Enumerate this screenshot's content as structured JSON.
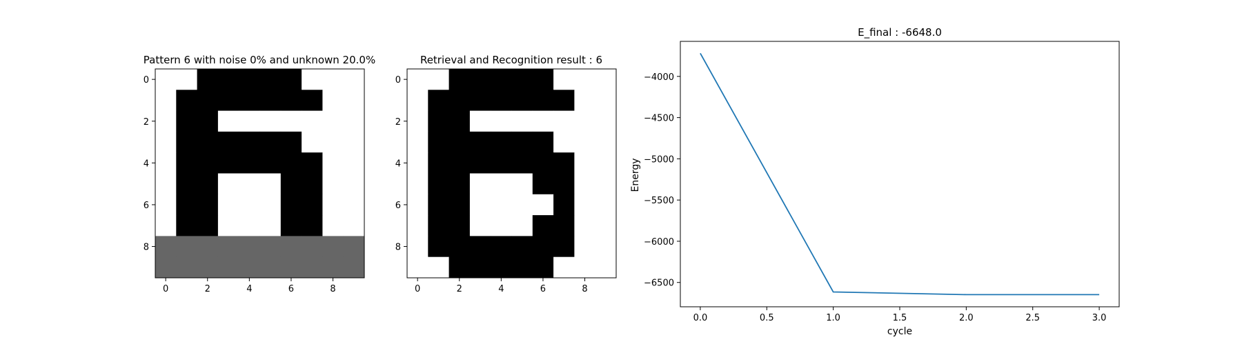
{
  "chart_data": [
    {
      "type": "heatmap",
      "title": "Pattern 6 with noise 0% and unknown 20.0%",
      "colormap": "gray (black = 1, white = 0, gray = unknown)",
      "colors": {
        "on": "#000000",
        "off": "#ffffff",
        "unknown": "#666666"
      },
      "x_ticks": [
        "0",
        "2",
        "4",
        "6",
        "8"
      ],
      "y_ticks": [
        "0",
        "2",
        "4",
        "6",
        "8"
      ],
      "xlim": [
        -0.5,
        9.5
      ],
      "ylim": [
        9.5,
        -0.5
      ],
      "grid": [
        [
          0,
          0,
          1,
          1,
          1,
          1,
          1,
          0,
          0,
          0
        ],
        [
          0,
          1,
          1,
          1,
          1,
          1,
          1,
          1,
          0,
          0
        ],
        [
          0,
          1,
          1,
          0,
          0,
          0,
          0,
          0,
          0,
          0
        ],
        [
          0,
          1,
          1,
          1,
          1,
          1,
          1,
          0,
          0,
          0
        ],
        [
          0,
          1,
          1,
          1,
          1,
          1,
          1,
          1,
          0,
          0
        ],
        [
          0,
          1,
          1,
          0,
          0,
          0,
          1,
          1,
          0,
          0
        ],
        [
          0,
          1,
          1,
          0,
          0,
          0,
          1,
          1,
          0,
          0
        ],
        [
          0,
          1,
          1,
          0,
          0,
          0,
          1,
          1,
          0,
          0
        ],
        [
          0.5,
          0.5,
          0.5,
          0.5,
          0.5,
          0.5,
          0.5,
          0.5,
          0.5,
          0.5
        ],
        [
          0.5,
          0.5,
          0.5,
          0.5,
          0.5,
          0.5,
          0.5,
          0.5,
          0.5,
          0.5
        ]
      ]
    },
    {
      "type": "heatmap",
      "title": "Retrieval and Recognition result : 6",
      "colormap": "gray (black = 1, white = 0)",
      "colors": {
        "on": "#000000",
        "off": "#ffffff"
      },
      "x_ticks": [
        "0",
        "2",
        "4",
        "6",
        "8"
      ],
      "y_ticks": [
        "0",
        "2",
        "4",
        "6",
        "8"
      ],
      "xlim": [
        -0.5,
        9.5
      ],
      "ylim": [
        9.5,
        -0.5
      ],
      "grid": [
        [
          0,
          0,
          1,
          1,
          1,
          1,
          1,
          0,
          0,
          0
        ],
        [
          0,
          1,
          1,
          1,
          1,
          1,
          1,
          1,
          0,
          0
        ],
        [
          0,
          1,
          1,
          0,
          0,
          0,
          0,
          0,
          0,
          0
        ],
        [
          0,
          1,
          1,
          1,
          1,
          1,
          1,
          0,
          0,
          0
        ],
        [
          0,
          1,
          1,
          1,
          1,
          1,
          1,
          1,
          0,
          0
        ],
        [
          0,
          1,
          1,
          0,
          0,
          0,
          1,
          1,
          0,
          0
        ],
        [
          0,
          1,
          1,
          0,
          0,
          0,
          0,
          1,
          0,
          0
        ],
        [
          0,
          1,
          1,
          0,
          0,
          0,
          1,
          1,
          0,
          0
        ],
        [
          0,
          1,
          1,
          1,
          1,
          1,
          1,
          1,
          0,
          0
        ],
        [
          0,
          0,
          1,
          1,
          1,
          1,
          1,
          0,
          0,
          0
        ]
      ]
    },
    {
      "type": "line",
      "title": "E_final : -6648.0",
      "xlabel": "cycle",
      "ylabel": "Energy",
      "x": [
        0.0,
        1.0,
        2.0,
        3.0
      ],
      "series": [
        {
          "values": [
            -3720,
            -6615,
            -6648,
            -6648
          ],
          "color": "#1f77b4"
        }
      ],
      "xlim": [
        -0.15,
        3.15
      ],
      "ylim": [
        -6795,
        -3575
      ],
      "x_ticks": [
        "0.0",
        "0.5",
        "1.0",
        "1.5",
        "2.0",
        "2.5",
        "3.0"
      ],
      "x_tick_values": [
        0,
        0.5,
        1.0,
        1.5,
        2.0,
        2.5,
        3.0
      ],
      "y_ticks": [
        "−4000",
        "−4500",
        "−5000",
        "−5500",
        "−6000",
        "−6500"
      ],
      "y_tick_values": [
        -4000,
        -4500,
        -5000,
        -5500,
        -6000,
        -6500
      ],
      "grid": false
    }
  ]
}
